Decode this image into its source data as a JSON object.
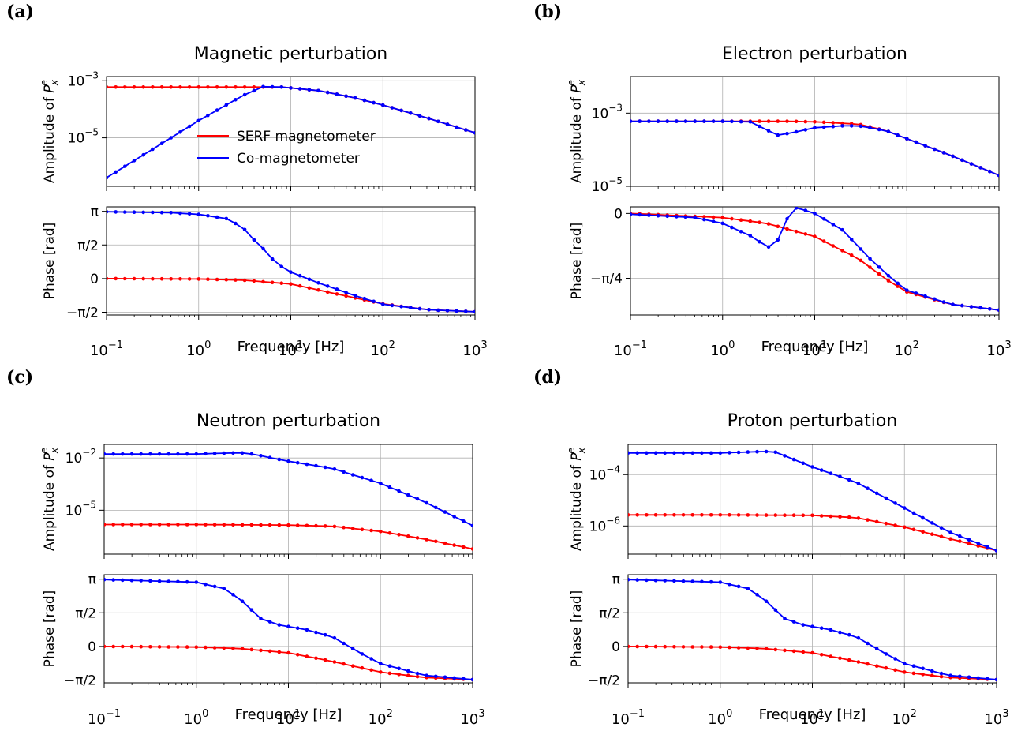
{
  "figure": {
    "legend": [
      {
        "label": "SERF magnetometer",
        "color": "#ff0000"
      },
      {
        "label": "Co-magnetometer",
        "color": "#0000ff"
      }
    ],
    "amplitude_ylabel_prefix": "Amplitude of ",
    "amplitude_ylabel_symbol": "P",
    "amplitude_ylabel_sup": "e",
    "amplitude_ylabel_sub": "x",
    "phase_ylabel": "Phase [rad]",
    "xlabel": "Frequency [Hz]",
    "x_ticks": [
      {
        "value": 0.1,
        "base": "10",
        "exp": "−1"
      },
      {
        "value": 1,
        "base": "10",
        "exp": "0"
      },
      {
        "value": 10,
        "base": "10",
        "exp": "1"
      },
      {
        "value": 100,
        "base": "10",
        "exp": "2"
      },
      {
        "value": 1000,
        "base": "10",
        "exp": "3"
      }
    ]
  },
  "chart_data": [
    {
      "panel_label": "(a)",
      "title": "Magnetic perturbation",
      "type": "line",
      "x_scale": "log",
      "xlim": [
        0.1,
        1000
      ],
      "amplitude": {
        "y_scale": "log",
        "ylim": [
          2e-07,
          0.0014
        ],
        "y_ticks": [
          {
            "value": 0.001,
            "base": "10",
            "exp": "−3"
          },
          {
            "value": 1e-05,
            "base": "10",
            "exp": "−5"
          }
        ],
        "series": [
          {
            "name": "SERF magnetometer",
            "points": [
              [
                0.1,
                0.0006
              ],
              [
                1,
                0.0006
              ],
              [
                3,
                0.0006
              ],
              [
                8,
                0.0006
              ],
              [
                20,
                0.00045
              ],
              [
                50,
                0.00025
              ],
              [
                100,
                0.00014
              ],
              [
                300,
                5e-05
              ],
              [
                1000,
                1.5e-05
              ]
            ]
          },
          {
            "name": "Co-magnetometer",
            "points": [
              [
                0.1,
                4e-07
              ],
              [
                0.3,
                3.6e-06
              ],
              [
                1,
                4e-05
              ],
              [
                3,
                0.0003
              ],
              [
                5,
                0.00062
              ],
              [
                8,
                0.0006
              ],
              [
                20,
                0.00045
              ],
              [
                50,
                0.00025
              ],
              [
                100,
                0.00014
              ],
              [
                300,
                5e-05
              ],
              [
                1000,
                1.5e-05
              ]
            ]
          }
        ]
      },
      "phase": {
        "ylim": [
          -1.7,
          3.35
        ],
        "y_ticks": [
          {
            "value": 3.1416,
            "label": "π"
          },
          {
            "value": 1.5708,
            "label": "π/2"
          },
          {
            "value": 0,
            "label": "0"
          },
          {
            "value": -1.5708,
            "label": "−π/2"
          }
        ],
        "series": [
          {
            "name": "SERF magnetometer",
            "points": [
              [
                0.1,
                0
              ],
              [
                1,
                -0.02
              ],
              [
                3,
                -0.07
              ],
              [
                10,
                -0.25
              ],
              [
                30,
                -0.7
              ],
              [
                100,
                -1.18
              ],
              [
                300,
                -1.45
              ],
              [
                1000,
                -1.55
              ]
            ]
          },
          {
            "name": "Co-magnetometer",
            "points": [
              [
                0.1,
                3.12
              ],
              [
                0.5,
                3.08
              ],
              [
                1,
                3.0
              ],
              [
                2,
                2.8
              ],
              [
                3,
                2.4
              ],
              [
                4,
                1.8
              ],
              [
                5,
                1.4
              ],
              [
                7,
                0.7
              ],
              [
                10,
                0.3
              ],
              [
                20,
                -0.2
              ],
              [
                50,
                -0.8
              ],
              [
                100,
                -1.2
              ],
              [
                300,
                -1.45
              ],
              [
                1000,
                -1.55
              ]
            ]
          }
        ]
      }
    },
    {
      "panel_label": "(b)",
      "title": "Electron perturbation",
      "type": "line",
      "x_scale": "log",
      "xlim": [
        0.1,
        1000
      ],
      "amplitude": {
        "y_scale": "log",
        "ylim": [
          1e-05,
          0.01
        ],
        "y_ticks": [
          {
            "value": 0.001,
            "base": "10",
            "exp": "−3"
          },
          {
            "value": 1e-05,
            "base": "10",
            "exp": "−5"
          }
        ],
        "series": [
          {
            "name": "SERF magnetometer",
            "points": [
              [
                0.1,
                0.0006
              ],
              [
                1,
                0.0006
              ],
              [
                5,
                0.0006
              ],
              [
                10,
                0.00058
              ],
              [
                30,
                0.0005
              ],
              [
                60,
                0.00033
              ],
              [
                100,
                0.0002
              ],
              [
                300,
                7e-05
              ],
              [
                1000,
                2e-05
              ]
            ]
          },
          {
            "name": "Co-magnetometer",
            "points": [
              [
                0.1,
                0.0006
              ],
              [
                1,
                0.0006
              ],
              [
                2,
                0.00058
              ],
              [
                3,
                0.00035
              ],
              [
                4,
                0.00025
              ],
              [
                6,
                0.0003
              ],
              [
                10,
                0.0004
              ],
              [
                20,
                0.00045
              ],
              [
                30,
                0.00045
              ],
              [
                60,
                0.00033
              ],
              [
                100,
                0.0002
              ],
              [
                300,
                7e-05
              ],
              [
                1000,
                2e-05
              ]
            ]
          }
        ]
      },
      "phase": {
        "ylim": [
          -1.23,
          0.08
        ],
        "y_ticks": [
          {
            "value": 0,
            "label": "0"
          },
          {
            "value": -0.7854,
            "label": "−π/4"
          }
        ],
        "series": [
          {
            "name": "SERF magnetometer",
            "points": [
              [
                0.1,
                0
              ],
              [
                1,
                -0.05
              ],
              [
                3,
                -0.12
              ],
              [
                10,
                -0.28
              ],
              [
                30,
                -0.55
              ],
              [
                60,
                -0.8
              ],
              [
                100,
                -0.95
              ],
              [
                300,
                -1.1
              ],
              [
                1000,
                -1.17
              ]
            ]
          },
          {
            "name": "Co-magnetometer",
            "points": [
              [
                0.1,
                -0.01
              ],
              [
                0.5,
                -0.05
              ],
              [
                1,
                -0.12
              ],
              [
                2,
                -0.27
              ],
              [
                3,
                -0.4
              ],
              [
                3.6,
                -0.42
              ],
              [
                4.5,
                -0.2
              ],
              [
                5.5,
                0.05
              ],
              [
                6.5,
                0.07
              ],
              [
                10,
                0.0
              ],
              [
                20,
                -0.2
              ],
              [
                40,
                -0.55
              ],
              [
                70,
                -0.8
              ],
              [
                100,
                -0.93
              ],
              [
                300,
                -1.1
              ],
              [
                1000,
                -1.17
              ]
            ]
          }
        ]
      }
    },
    {
      "panel_label": "(c)",
      "title": "Neutron perturbation",
      "type": "line",
      "x_scale": "log",
      "xlim": [
        0.1,
        1000
      ],
      "amplitude": {
        "y_scale": "log",
        "ylim": [
          3e-08,
          0.06
        ],
        "y_ticks": [
          {
            "value": 0.01,
            "base": "10",
            "exp": "−2"
          },
          {
            "value": 1e-05,
            "base": "10",
            "exp": "−5"
          }
        ],
        "series": [
          {
            "name": "SERF magnetometer",
            "points": [
              [
                0.1,
                1.5e-06
              ],
              [
                1,
                1.5e-06
              ],
              [
                10,
                1.4e-06
              ],
              [
                30,
                1.2e-06
              ],
              [
                100,
                6e-07
              ],
              [
                300,
                2.2e-07
              ],
              [
                1000,
                6e-08
              ]
            ]
          },
          {
            "name": "Co-magnetometer",
            "points": [
              [
                0.1,
                0.017
              ],
              [
                1,
                0.017
              ],
              [
                3,
                0.02
              ],
              [
                4,
                0.017
              ],
              [
                10,
                0.0065
              ],
              [
                30,
                0.0025
              ],
              [
                100,
                0.00035
              ],
              [
                300,
                3e-05
              ],
              [
                1000,
                1.3e-06
              ]
            ]
          }
        ]
      },
      "phase": {
        "ylim": [
          -1.7,
          3.35
        ],
        "y_ticks": [
          {
            "value": 3.1416,
            "label": "π"
          },
          {
            "value": 1.5708,
            "label": "π/2"
          },
          {
            "value": 0,
            "label": "0"
          },
          {
            "value": -1.5708,
            "label": "−π/2"
          }
        ],
        "series": [
          {
            "name": "SERF magnetometer",
            "points": [
              [
                0.1,
                0
              ],
              [
                1,
                -0.03
              ],
              [
                3,
                -0.1
              ],
              [
                10,
                -0.3
              ],
              [
                30,
                -0.7
              ],
              [
                100,
                -1.2
              ],
              [
                300,
                -1.45
              ],
              [
                1000,
                -1.55
              ]
            ]
          },
          {
            "name": "Co-magnetometer",
            "points": [
              [
                0.1,
                3.12
              ],
              [
                1,
                3.0
              ],
              [
                2,
                2.7
              ],
              [
                3,
                2.2
              ],
              [
                5,
                1.3
              ],
              [
                8,
                1.0
              ],
              [
                15,
                0.8
              ],
              [
                30,
                0.45
              ],
              [
                60,
                -0.3
              ],
              [
                100,
                -0.8
              ],
              [
                300,
                -1.35
              ],
              [
                1000,
                -1.55
              ]
            ]
          }
        ]
      }
    },
    {
      "panel_label": "(d)",
      "title": "Proton perturbation",
      "type": "line",
      "x_scale": "log",
      "xlim": [
        0.1,
        1000
      ],
      "amplitude": {
        "y_scale": "log",
        "ylim": [
          8e-08,
          0.0015
        ],
        "y_ticks": [
          {
            "value": 0.0001,
            "base": "10",
            "exp": "−4"
          },
          {
            "value": 1e-06,
            "base": "10",
            "exp": "−6"
          }
        ],
        "series": [
          {
            "name": "SERF magnetometer",
            "points": [
              [
                0.1,
                2.7e-06
              ],
              [
                1,
                2.7e-06
              ],
              [
                10,
                2.6e-06
              ],
              [
                30,
                2.1e-06
              ],
              [
                100,
                9e-07
              ],
              [
                300,
                3.3e-07
              ],
              [
                1000,
                1.1e-07
              ]
            ]
          },
          {
            "name": "Co-magnetometer",
            "points": [
              [
                0.1,
                0.0007
              ],
              [
                1,
                0.0007
              ],
              [
                3,
                0.0008
              ],
              [
                4,
                0.00075
              ],
              [
                10,
                0.0002
              ],
              [
                30,
                5e-05
              ],
              [
                100,
                5e-06
              ],
              [
                300,
                6e-07
              ],
              [
                1000,
                1.1e-07
              ]
            ]
          }
        ]
      },
      "phase": {
        "ylim": [
          -1.7,
          3.35
        ],
        "y_ticks": [
          {
            "value": 3.1416,
            "label": "π"
          },
          {
            "value": 1.5708,
            "label": "π/2"
          },
          {
            "value": 0,
            "label": "0"
          },
          {
            "value": -1.5708,
            "label": "−π/2"
          }
        ],
        "series": [
          {
            "name": "SERF magnetometer",
            "points": [
              [
                0.1,
                0
              ],
              [
                1,
                -0.03
              ],
              [
                3,
                -0.1
              ],
              [
                10,
                -0.3
              ],
              [
                30,
                -0.7
              ],
              [
                100,
                -1.2
              ],
              [
                300,
                -1.45
              ],
              [
                1000,
                -1.55
              ]
            ]
          },
          {
            "name": "Co-magnetometer",
            "points": [
              [
                0.1,
                3.12
              ],
              [
                1,
                3.0
              ],
              [
                2,
                2.7
              ],
              [
                3,
                2.2
              ],
              [
                5,
                1.3
              ],
              [
                8,
                1.0
              ],
              [
                15,
                0.8
              ],
              [
                30,
                0.45
              ],
              [
                60,
                -0.3
              ],
              [
                100,
                -0.8
              ],
              [
                300,
                -1.35
              ],
              [
                1000,
                -1.55
              ]
            ]
          }
        ]
      }
    }
  ]
}
